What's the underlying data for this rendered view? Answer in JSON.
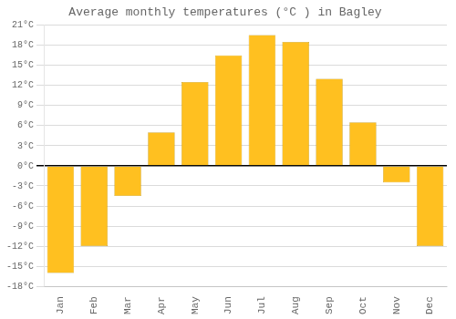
{
  "chart_data": {
    "type": "bar",
    "title": "Average monthly temperatures (°C ) in Bagley",
    "categories": [
      "Jan",
      "Feb",
      "Mar",
      "Apr",
      "May",
      "Jun",
      "Jul",
      "Aug",
      "Sep",
      "Oct",
      "Nov",
      "Dec"
    ],
    "values": [
      -16,
      -12,
      -4.5,
      5,
      12.5,
      16.5,
      19.5,
      18.5,
      13,
      6.5,
      -2.5,
      -12
    ],
    "color": "#FFC020",
    "ylim": [
      -18,
      21
    ],
    "yticks": [
      {
        "value": -18,
        "label": "-18°C"
      },
      {
        "value": -15,
        "label": "-15°C"
      },
      {
        "value": -12,
        "label": "-12°C"
      },
      {
        "value": -9,
        "label": "-9°C"
      },
      {
        "value": -6,
        "label": "-6°C"
      },
      {
        "value": -3,
        "label": "-3°C"
      },
      {
        "value": 0,
        "label": "0°C"
      },
      {
        "value": 3,
        "label": "3°C"
      },
      {
        "value": 6,
        "label": "6°C"
      },
      {
        "value": 9,
        "label": "9°C"
      },
      {
        "value": 12,
        "label": "12°C"
      },
      {
        "value": 15,
        "label": "15°C"
      },
      {
        "value": 18,
        "label": "18°C"
      },
      {
        "value": 21,
        "label": "21°C"
      }
    ],
    "grid": true
  }
}
